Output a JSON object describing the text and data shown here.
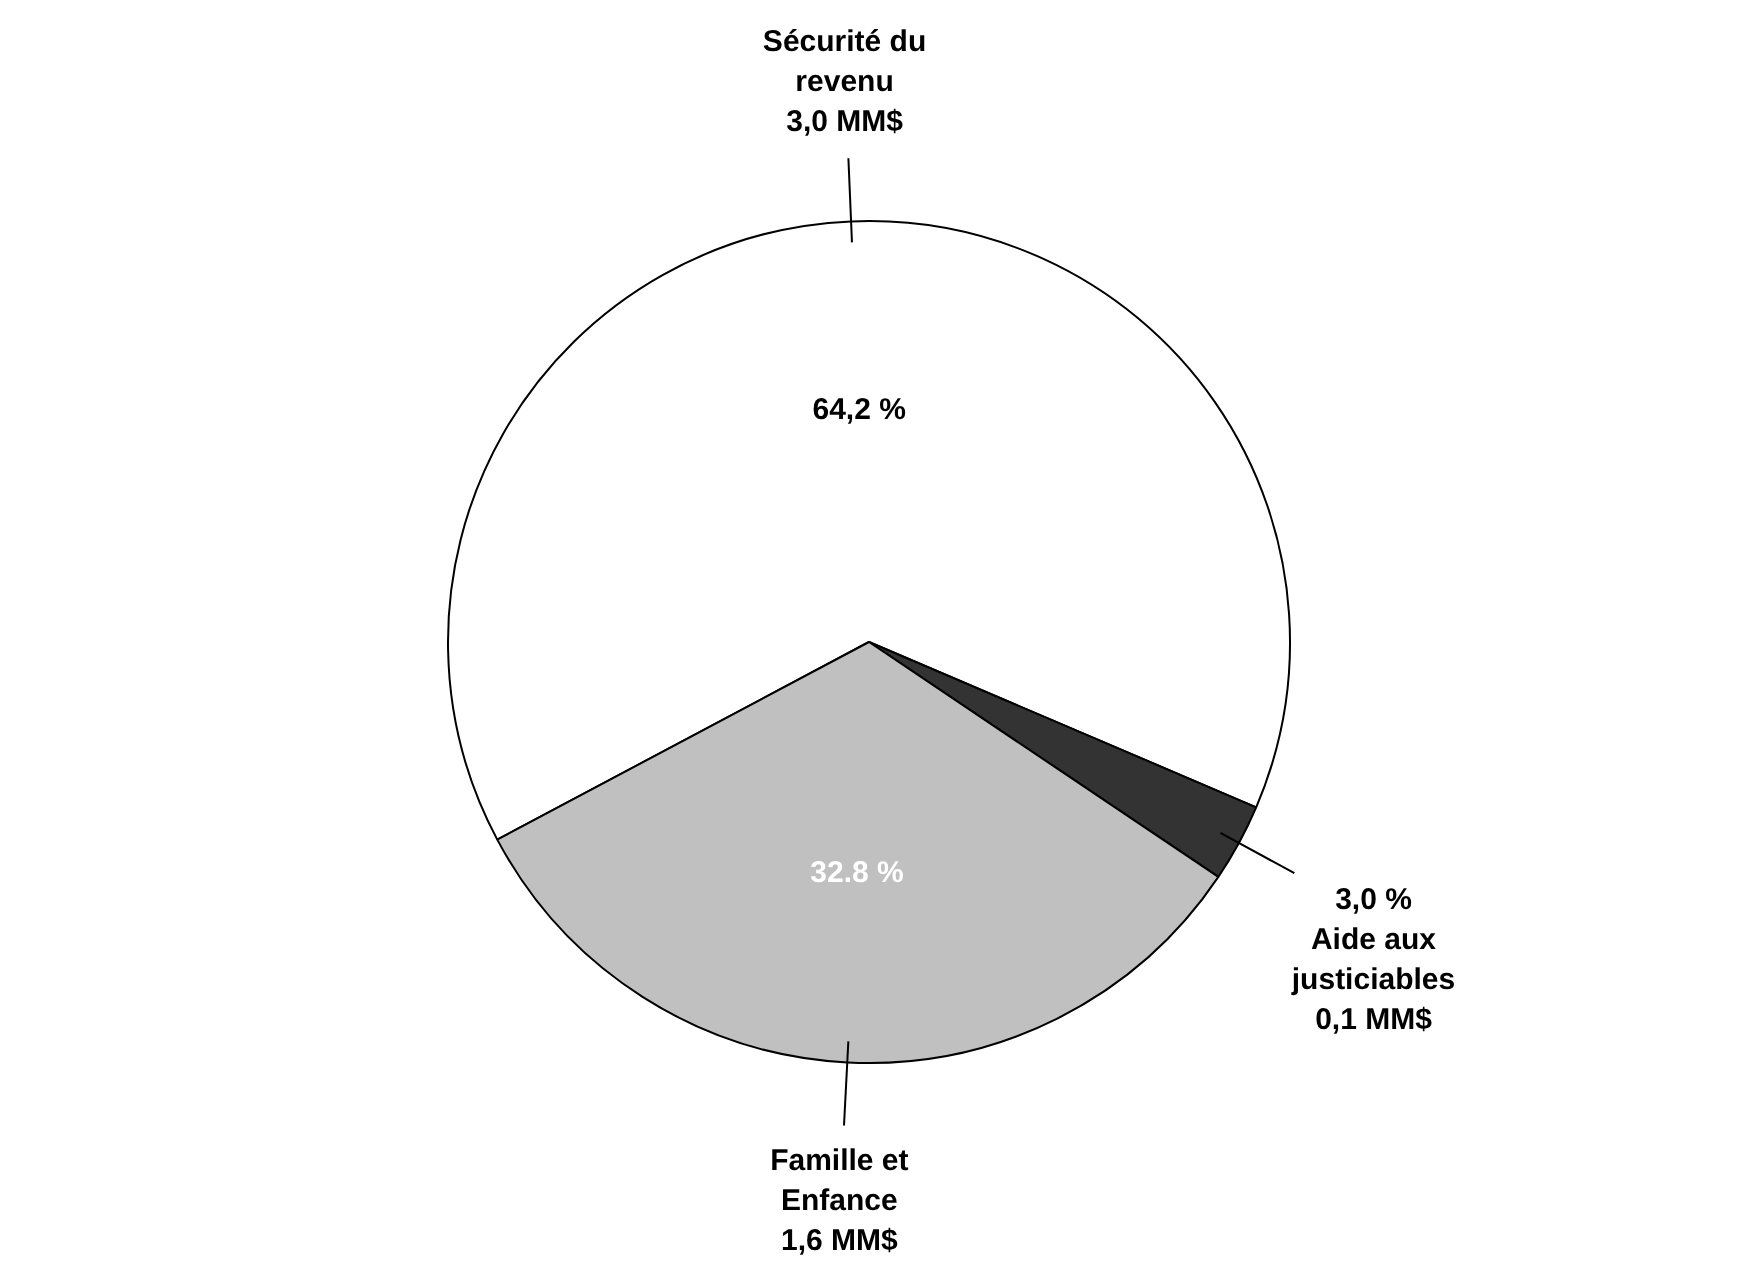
{
  "chart_data": {
    "type": "pie",
    "categories": [
      "Sécurité du revenu",
      "Aide aux justiciables",
      "Famille et Enfance"
    ],
    "values": [
      64.2,
      3.0,
      32.8
    ],
    "colors": [
      "#ffffff",
      "#333333",
      "#c0c0c0"
    ],
    "value_labels": [
      "64,2 %",
      "3,0 %",
      "32.8 %"
    ],
    "annotations": [
      {
        "text": "3,0 MM$",
        "x": "Sécurité du revenu"
      },
      {
        "text": "0,1 MM$",
        "x": "Aide aux justiciables"
      },
      {
        "text": "1,6 MM$",
        "x": "Famille et Enfance"
      }
    ],
    "legend": false
  }
}
